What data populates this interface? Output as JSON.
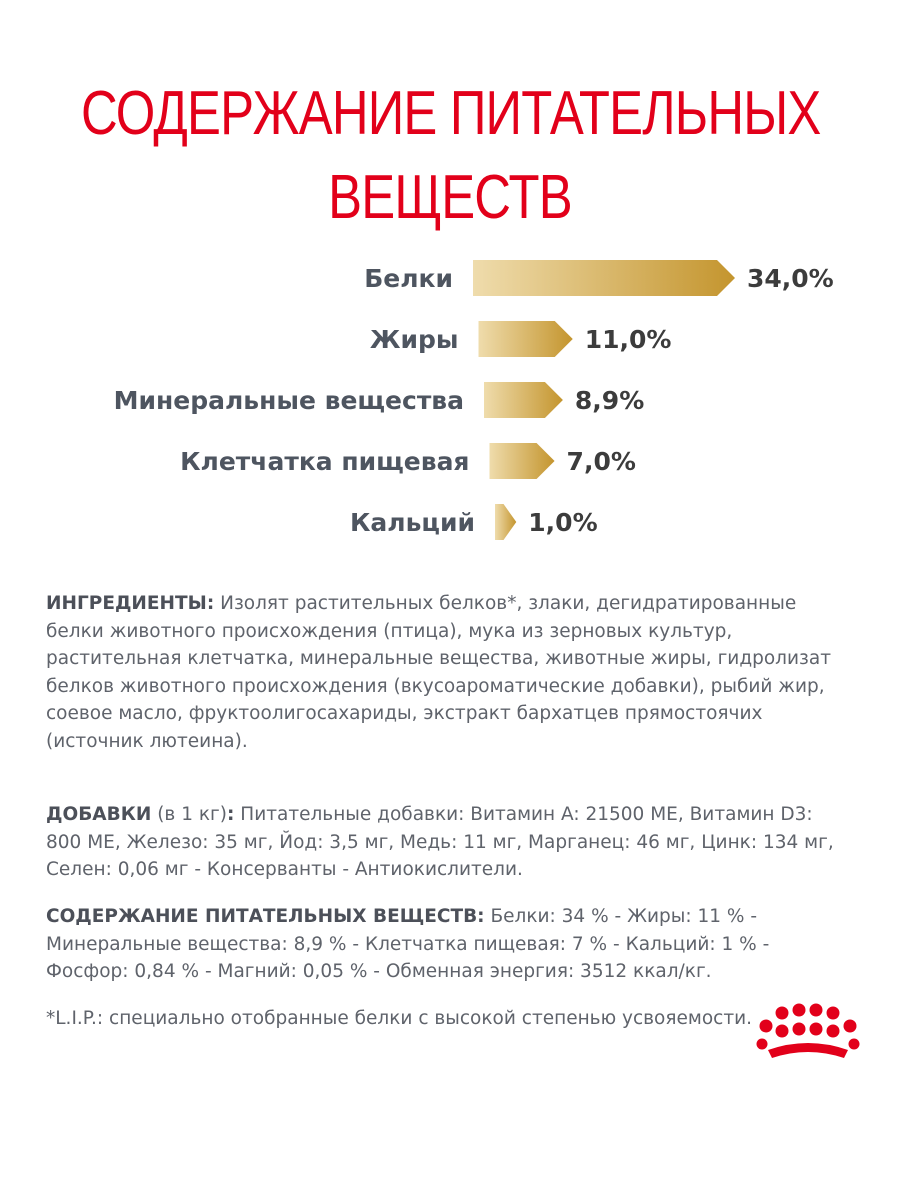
{
  "title": {
    "line1": "СОДЕРЖАНИЕ ПИТАТЕЛЬНЫХ",
    "line2": "ВЕЩЕСТВ"
  },
  "chart_data": {
    "type": "bar",
    "orientation": "horizontal",
    "categories": [
      "Белки",
      "Жиры",
      "Минеральные вещества",
      "Клетчатка пищевая",
      "Кальций"
    ],
    "values": [
      34.0,
      11.0,
      8.9,
      7.0,
      1.0
    ],
    "value_labels": [
      "34,0%",
      "11,0%",
      "8,9%",
      "7,0%",
      "1,0%"
    ],
    "title": "",
    "xlabel": "",
    "ylabel": "",
    "colors": {
      "bar_start": "#efdcac",
      "bar_end": "#c4952e"
    }
  },
  "ingredients": {
    "label": "ИНГРЕДИЕНТЫ:",
    "text": "Изолят растительных белков*, злаки, дегидратированные белки животного происхождения (птица), мука из зерновых культур, растительная клетчатка, минеральные вещества, животные жиры, гидролизат белков животного происхождения (вкусоароматические добавки), рыбий жир, соевое масло, фруктоолигосахариды, экстракт бархатцев прямостоячих (источник лютеина)."
  },
  "additives": {
    "label": "ДОБАВКИ",
    "unit": "(в 1 кг)",
    "colon": ":",
    "text": "Питательные добавки: Витамин A: 21500 МЕ, Витамин D3: 800 МЕ, Железо: 35 мг, Йод: 3,5 мг, Медь: 11 мг, Марганец: 46 мг, Цинк: 134 мг, Селен: 0,06 мг - Консерванты - Антиокислители."
  },
  "nutrients": {
    "label": "СОДЕРЖАНИЕ ПИТАТЕЛЬНЫХ ВЕЩЕСТВ:",
    "text": "Белки: 34 % - Жиры: 11 % - Минеральные вещества: 8,9 % - Клетчатка пищевая: 7 % - Кальций: 1 % - Фосфор: 0,84 % - Магний: 0,05 % - Обменная энергия: 3512 ккал/кг."
  },
  "footnote": {
    "text": "*L.I.P.: специально отобранные белки с высокой степенью усвояемости."
  },
  "logo": {
    "icon": "royal-crown-icon",
    "color": "#e2001a"
  }
}
